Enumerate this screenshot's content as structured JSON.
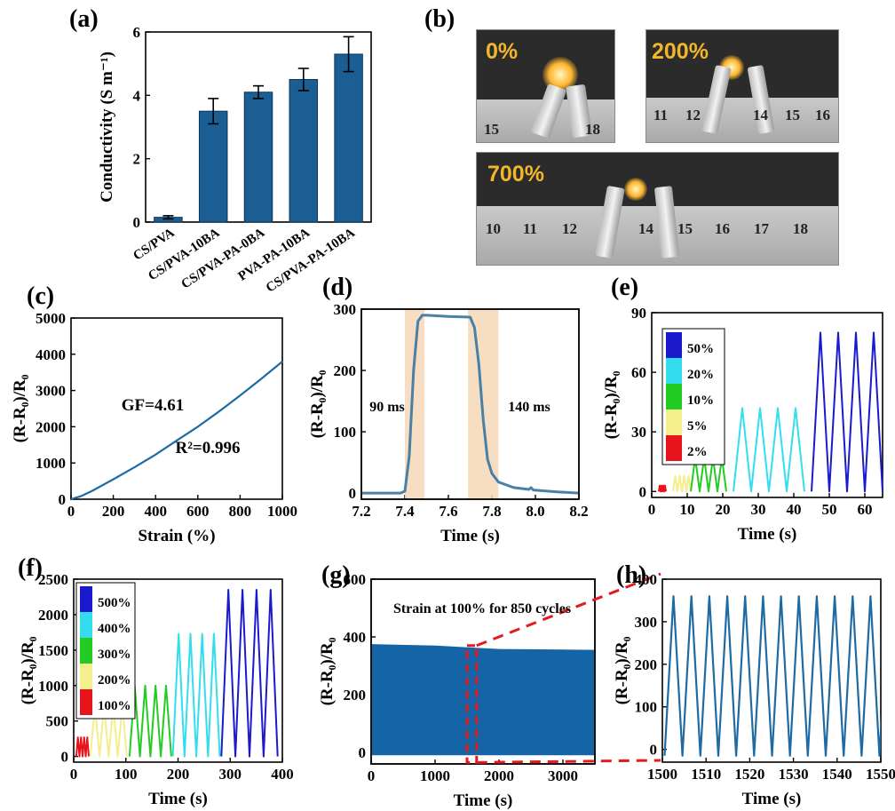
{
  "panels": {
    "a": "(a)",
    "b": "(b)",
    "c": "(c)",
    "d": "(d)",
    "e": "(e)",
    "f": "(f)",
    "g": "(g)",
    "h": "(h)"
  },
  "photos": {
    "p0": {
      "label": "0%",
      "ticks": [
        "15",
        "18"
      ]
    },
    "p200": {
      "label": "200%",
      "ticks": [
        "11",
        "12",
        "14",
        "15",
        "16"
      ]
    },
    "p700": {
      "label": "700%",
      "ticks": [
        "10",
        "11",
        "12",
        "14",
        "15",
        "16",
        "17",
        "18"
      ]
    }
  },
  "colors": {
    "bar": "#1a5e93",
    "line": "#1e6aa3",
    "highlight": "#f6d8b8",
    "zoom": "#e41a1c"
  },
  "chart_data": [
    {
      "id": "a",
      "type": "bar",
      "categories": [
        "CS/PVA",
        "CS/PVA-10BA",
        "CS/PVA-PA-0BA",
        "PVA-PA-10BA",
        "CS/PVA-PA-10BA"
      ],
      "values": [
        0.15,
        3.5,
        4.1,
        4.5,
        5.3
      ],
      "errors": [
        0.05,
        0.4,
        0.2,
        0.35,
        0.55
      ],
      "ylabel": "Conductivity (S m⁻¹)",
      "ylim": [
        0,
        6
      ],
      "yticks": [
        0,
        2,
        4,
        6
      ]
    },
    {
      "id": "c",
      "type": "line",
      "xlabel": "Strain (%)",
      "ylabel": "(R-R₀)/R₀",
      "xlim": [
        0,
        1000
      ],
      "ylim": [
        0,
        5000
      ],
      "xticks": [
        0,
        200,
        400,
        600,
        800,
        1000
      ],
      "yticks": [
        0,
        1000,
        2000,
        3000,
        4000,
        5000
      ],
      "x": [
        0,
        50,
        100,
        200,
        300,
        400,
        500,
        600,
        700,
        800,
        900,
        1000
      ],
      "y": [
        0,
        90,
        230,
        550,
        880,
        1230,
        1620,
        2000,
        2420,
        2860,
        3320,
        3800
      ],
      "annotations": [
        "GF=4.61",
        "R²=0.996"
      ]
    },
    {
      "id": "d",
      "type": "line",
      "xlabel": "Time (s)",
      "ylabel": "(R-R₀)/R₀",
      "xlim": [
        7.2,
        8.2
      ],
      "ylim": [
        -10,
        300
      ],
      "xticks": [
        7.2,
        7.4,
        7.6,
        7.8,
        8.0,
        8.2
      ],
      "yticks": [
        0,
        100,
        200,
        300
      ],
      "x": [
        7.2,
        7.3,
        7.38,
        7.4,
        7.42,
        7.44,
        7.46,
        7.48,
        7.5,
        7.6,
        7.7,
        7.72,
        7.74,
        7.76,
        7.78,
        7.8,
        7.83,
        7.9,
        7.97,
        7.98,
        7.99,
        8.1,
        8.2
      ],
      "y": [
        0,
        0,
        0,
        3,
        60,
        200,
        280,
        290,
        290,
        288,
        287,
        270,
        210,
        120,
        55,
        32,
        18,
        9,
        6,
        9,
        5,
        2,
        0
      ],
      "bands": [
        [
          7.4,
          7.49
        ],
        [
          7.69,
          7.83
        ]
      ],
      "annotations": [
        "90 ms",
        "140 ms"
      ]
    },
    {
      "id": "e",
      "type": "line",
      "xlabel": "Time (s)",
      "ylabel": "(R-R₀)/R₀",
      "xlim": [
        0,
        65
      ],
      "ylim": [
        -3,
        90
      ],
      "xticks": [
        0,
        10,
        20,
        30,
        40,
        50,
        60
      ],
      "yticks": [
        0,
        30,
        60,
        90
      ],
      "series": [
        {
          "name": "2%",
          "color": "#e8141c",
          "start": 2,
          "period": 0.5,
          "peak": 3,
          "cycles": 4
        },
        {
          "name": "5%",
          "color": "#f4ee8c",
          "start": 6,
          "period": 1.25,
          "peak": 8,
          "cycles": 4
        },
        {
          "name": "10%",
          "color": "#22cc22",
          "start": 11,
          "period": 2.5,
          "peak": 17,
          "cycles": 4
        },
        {
          "name": "20%",
          "color": "#33ddee",
          "start": 23,
          "period": 5,
          "peak": 42,
          "cycles": 4
        },
        {
          "name": "50%",
          "color": "#1a1acc",
          "start": 45,
          "period": 5,
          "peak": 80,
          "cycles": 4
        }
      ]
    },
    {
      "id": "f",
      "type": "line",
      "xlabel": "Time (s)",
      "ylabel": "(R-R₀)/R₀",
      "xlim": [
        0,
        400
      ],
      "ylim": [
        -80,
        2500
      ],
      "xticks": [
        0,
        100,
        200,
        300,
        400
      ],
      "yticks": [
        0,
        500,
        1000,
        1500,
        2000,
        2500
      ],
      "series": [
        {
          "name": "100%",
          "color": "#e8141c",
          "start": 5,
          "period": 6,
          "peak": 270,
          "cycles": 4
        },
        {
          "name": "200%",
          "color": "#f4ee8c",
          "start": 32,
          "period": 17.5,
          "peak": 720,
          "cycles": 4
        },
        {
          "name": "300%",
          "color": "#22cc22",
          "start": 107,
          "period": 20,
          "peak": 1000,
          "cycles": 4
        },
        {
          "name": "400%",
          "color": "#33ddee",
          "start": 190,
          "period": 22.5,
          "peak": 1730,
          "cycles": 4
        },
        {
          "name": "500%",
          "color": "#1a1acc",
          "start": 283,
          "period": 27,
          "peak": 2350,
          "cycles": 4
        }
      ]
    },
    {
      "id": "g",
      "type": "area",
      "xlabel": "Time (s)",
      "ylabel": "(R-R₀)/R₀",
      "xlim": [
        0,
        3500
      ],
      "ylim": [
        -40,
        600
      ],
      "xticks": [
        0,
        1000,
        2000,
        3000
      ],
      "yticks": [
        0,
        200,
        400,
        600
      ],
      "upper": [
        [
          0,
          375
        ],
        [
          1000,
          370
        ],
        [
          2000,
          358
        ],
        [
          3500,
          355
        ]
      ],
      "lower": [
        [
          0,
          -10
        ],
        [
          3500,
          -10
        ]
      ],
      "zoom_range": [
        1500,
        1650
      ],
      "annotations": [
        "Strain at 100% for 850 cycles"
      ]
    },
    {
      "id": "h",
      "type": "line",
      "xlabel": "Time (s)",
      "ylabel": "(R-R₀)/R₀",
      "xlim": [
        1500,
        1550
      ],
      "ylim": [
        -30,
        400
      ],
      "xticks": [
        1500,
        1510,
        1520,
        1530,
        1540,
        1550
      ],
      "yticks": [
        0,
        100,
        200,
        300,
        400
      ],
      "start": 1500.5,
      "period": 4.1,
      "peak": 360,
      "trough": -15,
      "cycles": 12
    }
  ]
}
